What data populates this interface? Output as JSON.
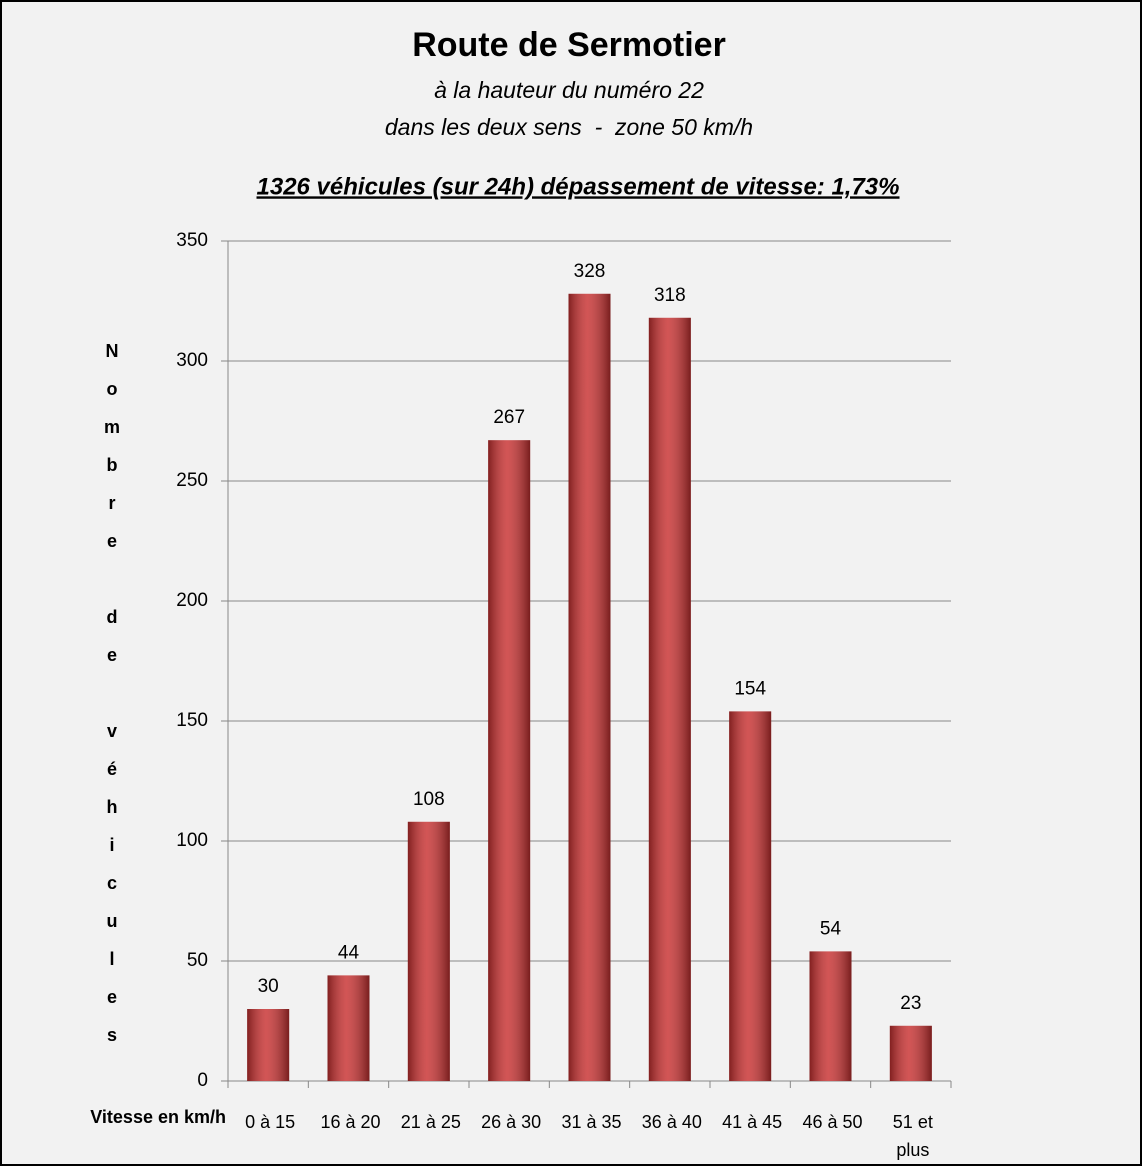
{
  "chart_data": {
    "type": "bar",
    "title": "Route de Sermotier",
    "subtitle": [
      "à la hauteur du numéro 22",
      "dans les deux sens  -  zone 50 km/h"
    ],
    "annotation": "1326 véhicules (sur 24h) dépassement de vitesse: 1,73%",
    "ylabel": "Nombre de véhicules",
    "xlabel": "Vitesse en km/h",
    "categories": [
      "0 à 15",
      "16 à 20",
      "21 à 25",
      "26 à 30",
      "31 à 35",
      "36 à 40",
      "41 à 45",
      "46 à 50",
      "51 et plus"
    ],
    "values": [
      30,
      44,
      108,
      267,
      328,
      318,
      154,
      54,
      23
    ],
    "color": "#c83030",
    "ylim": [
      0,
      350
    ],
    "yticks": [
      0,
      50,
      100,
      150,
      200,
      250,
      300,
      350
    ],
    "grid": true
  }
}
